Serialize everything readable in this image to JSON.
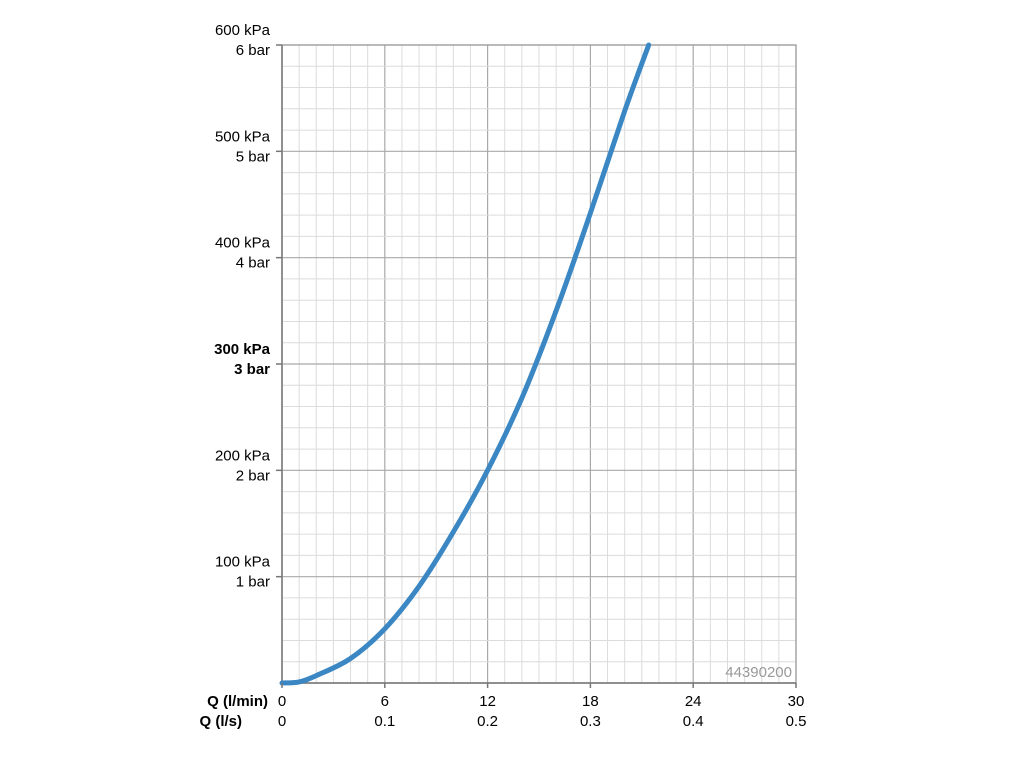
{
  "chart_data": {
    "type": "line",
    "title": "",
    "xlabels": [
      "Q (l/min)",
      "Q (l/s)"
    ],
    "x_ticks_primary": [
      "0",
      "6",
      "12",
      "18",
      "24",
      "30"
    ],
    "x_ticks_secondary": [
      "0",
      "0.1",
      "0.2",
      "0.3",
      "0.4",
      "0.5"
    ],
    "xlim": [
      0,
      30
    ],
    "ylim": [
      0,
      600
    ],
    "y_ticks": [
      {
        "value": 100,
        "kpa": "100 kPa",
        "bar": "1 bar",
        "bold": false
      },
      {
        "value": 200,
        "kpa": "200 kPa",
        "bar": "2 bar",
        "bold": false
      },
      {
        "value": 300,
        "kpa": "300 kPa",
        "bar": "3 bar",
        "bold": true
      },
      {
        "value": 400,
        "kpa": "400 kPa",
        "bar": "4 bar",
        "bold": false
      },
      {
        "value": 500,
        "kpa": "500 kPa",
        "bar": "5 bar",
        "bold": false
      },
      {
        "value": 600,
        "kpa": "600 kPa",
        "bar": "6 bar",
        "bold": false
      }
    ],
    "grid": true,
    "series": [
      {
        "color": "#3a87c4",
        "x": [
          0,
          1,
          2,
          4,
          6,
          8,
          10,
          12,
          14,
          16,
          18,
          20,
          21.4
        ],
        "y": [
          0,
          1,
          7,
          23,
          51,
          91,
          142,
          200,
          268,
          350,
          442,
          538,
          600
        ]
      }
    ],
    "watermark": "44390200"
  }
}
